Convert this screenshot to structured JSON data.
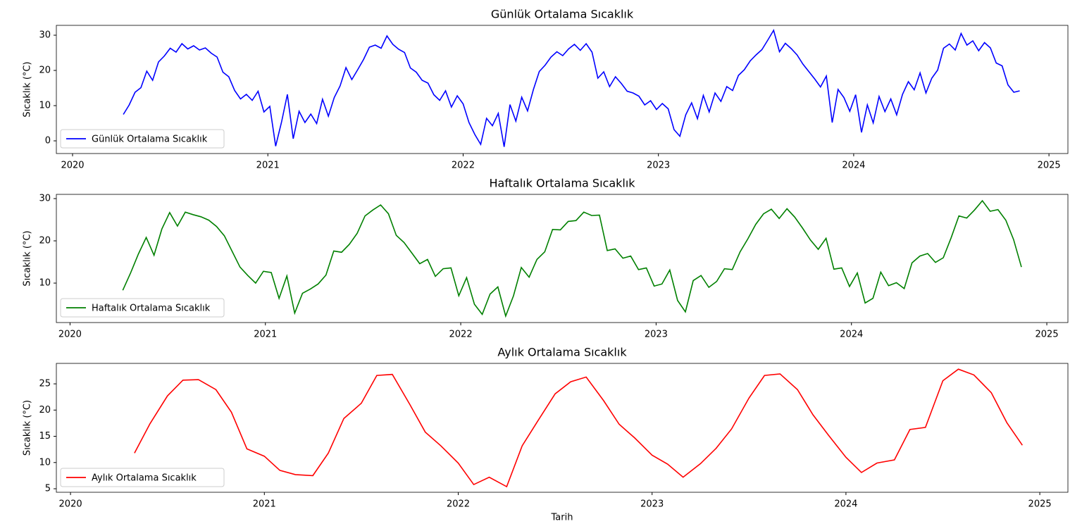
{
  "chart_data": [
    {
      "type": "line",
      "title": "Günlük Ortalama Sıcaklık",
      "y_label": "Sıcaklık (°C)",
      "legend": "lower left",
      "xlim": [
        2019.917,
        2025.097
      ],
      "xticks": [
        2020,
        2021,
        2022,
        2023,
        2024,
        2025
      ],
      "ylim": [
        -3.6,
        32.8
      ],
      "yticks": [
        0,
        10,
        20,
        30
      ],
      "x": [
        2020.26,
        2020.29,
        2020.32,
        2020.35,
        2020.38,
        2020.41,
        2020.44,
        2020.47,
        2020.5,
        2020.53,
        2020.56,
        2020.59,
        2020.62,
        2020.65,
        2020.68,
        2020.71,
        2020.74,
        2020.77,
        2020.8,
        2020.83,
        2020.86,
        2020.89,
        2020.92,
        2020.95,
        2020.98,
        2021.01,
        2021.04,
        2021.07,
        2021.1,
        2021.13,
        2021.16,
        2021.19,
        2021.22,
        2021.25,
        2021.28,
        2021.31,
        2021.34,
        2021.37,
        2021.4,
        2021.43,
        2021.46,
        2021.49,
        2021.52,
        2021.55,
        2021.58,
        2021.61,
        2021.64,
        2021.67,
        2021.7,
        2021.73,
        2021.76,
        2021.79,
        2021.82,
        2021.85,
        2021.88,
        2021.91,
        2021.94,
        2021.97,
        2022.0,
        2022.03,
        2022.06,
        2022.09,
        2022.12,
        2022.15,
        2022.18,
        2022.21,
        2022.24,
        2022.27,
        2022.3,
        2022.33,
        2022.36,
        2022.39,
        2022.42,
        2022.45,
        2022.48,
        2022.51,
        2022.54,
        2022.57,
        2022.6,
        2022.63,
        2022.66,
        2022.69,
        2022.72,
        2022.75,
        2022.78,
        2022.81,
        2022.84,
        2022.87,
        2022.9,
        2022.93,
        2022.96,
        2022.99,
        2023.02,
        2023.05,
        2023.08,
        2023.11,
        2023.14,
        2023.17,
        2023.2,
        2023.23,
        2023.26,
        2023.29,
        2023.32,
        2023.35,
        2023.38,
        2023.41,
        2023.44,
        2023.47,
        2023.5,
        2023.53,
        2023.56,
        2023.59,
        2023.62,
        2023.65,
        2023.68,
        2023.71,
        2023.74,
        2023.77,
        2023.8,
        2023.83,
        2023.86,
        2023.89,
        2023.92,
        2023.95,
        2023.98,
        2024.01,
        2024.04,
        2024.07,
        2024.1,
        2024.13,
        2024.16,
        2024.19,
        2024.22,
        2024.25,
        2024.28,
        2024.31,
        2024.34,
        2024.37,
        2024.4,
        2024.43,
        2024.46,
        2024.49,
        2024.52,
        2024.55,
        2024.58,
        2024.61,
        2024.64,
        2024.67,
        2024.7,
        2024.73,
        2024.76,
        2024.79,
        2024.82,
        2024.85
      ],
      "series": [
        {
          "name": "Günlük Ortalama Sıcaklık",
          "color": "#0000ff",
          "values": [
            7.5,
            10.2,
            13.8,
            15.1,
            19.8,
            17.2,
            22.4,
            24.1,
            26.3,
            25.2,
            27.6,
            26.1,
            27.0,
            25.8,
            26.4,
            24.9,
            23.8,
            19.5,
            18.2,
            14.3,
            11.9,
            13.2,
            11.5,
            14.1,
            8.2,
            9.8,
            -1.5,
            5.3,
            13.2,
            0.6,
            8.4,
            5.2,
            7.6,
            4.9,
            11.8,
            7.0,
            12.3,
            15.6,
            20.8,
            17.4,
            20.2,
            23.1,
            26.6,
            27.2,
            26.3,
            29.8,
            27.4,
            26.0,
            25.1,
            20.7,
            19.5,
            17.2,
            16.4,
            13.1,
            11.5,
            14.2,
            9.6,
            12.8,
            10.5,
            5.2,
            1.8,
            -1.0,
            6.4,
            4.3,
            7.8,
            -1.7,
            10.3,
            5.6,
            12.4,
            8.5,
            14.6,
            19.7,
            21.5,
            23.8,
            25.3,
            24.2,
            26.1,
            27.4,
            25.7,
            27.6,
            25.2,
            17.8,
            19.6,
            15.4,
            18.2,
            16.3,
            14.1,
            13.6,
            12.7,
            10.2,
            11.4,
            8.9,
            10.6,
            9.1,
            3.2,
            1.3,
            7.4,
            10.8,
            6.3,
            12.9,
            8.2,
            13.6,
            11.2,
            15.4,
            14.3,
            18.6,
            20.2,
            22.7,
            24.4,
            25.9,
            28.6,
            31.4,
            25.3,
            27.7,
            26.2,
            24.4,
            21.8,
            19.7,
            17.6,
            15.3,
            18.4,
            5.2,
            14.6,
            12.3,
            8.4,
            13.1,
            2.4,
            10.2,
            5.1,
            12.6,
            8.3,
            11.9,
            7.4,
            13.2,
            16.8,
            14.5,
            19.3,
            13.6,
            17.8,
            20.1,
            26.3,
            27.5,
            25.8,
            30.5,
            27.2,
            28.4,
            25.6,
            27.9,
            26.4,
            22.1,
            21.3,
            15.9,
            13.8,
            14.2
          ]
        }
      ]
    },
    {
      "type": "line",
      "title": "Haftalık Ortalama Sıcaklık",
      "y_label": "Sıcaklık (°C)",
      "legend": "lower left",
      "xlim": [
        2019.93,
        2025.108
      ],
      "xticks": [
        2020,
        2021,
        2022,
        2023,
        2024,
        2025
      ],
      "ylim": [
        0.67,
        31.0
      ],
      "yticks": [
        10,
        20,
        30
      ],
      "x": [
        2020.27,
        2020.31,
        2020.35,
        2020.39,
        2020.43,
        2020.47,
        2020.51,
        2020.55,
        2020.59,
        2020.63,
        2020.67,
        2020.71,
        2020.75,
        2020.79,
        2020.83,
        2020.87,
        2020.91,
        2020.95,
        2020.99,
        2021.03,
        2021.07,
        2021.11,
        2021.15,
        2021.19,
        2021.23,
        2021.27,
        2021.31,
        2021.35,
        2021.39,
        2021.43,
        2021.47,
        2021.51,
        2021.55,
        2021.59,
        2021.63,
        2021.67,
        2021.71,
        2021.75,
        2021.79,
        2021.83,
        2021.87,
        2021.91,
        2021.95,
        2021.99,
        2022.03,
        2022.07,
        2022.11,
        2022.15,
        2022.19,
        2022.23,
        2022.27,
        2022.31,
        2022.35,
        2022.39,
        2022.43,
        2022.47,
        2022.51,
        2022.55,
        2022.59,
        2022.63,
        2022.67,
        2022.71,
        2022.75,
        2022.79,
        2022.83,
        2022.87,
        2022.91,
        2022.95,
        2022.99,
        2023.03,
        2023.07,
        2023.11,
        2023.15,
        2023.19,
        2023.23,
        2023.27,
        2023.31,
        2023.35,
        2023.39,
        2023.43,
        2023.47,
        2023.51,
        2023.55,
        2023.59,
        2023.63,
        2023.67,
        2023.71,
        2023.75,
        2023.79,
        2023.83,
        2023.87,
        2023.91,
        2023.95,
        2023.99,
        2024.03,
        2024.07,
        2024.11,
        2024.15,
        2024.19,
        2024.23,
        2024.27,
        2024.31,
        2024.35,
        2024.39,
        2024.43,
        2024.47,
        2024.51,
        2024.55,
        2024.59,
        2024.63,
        2024.67,
        2024.71,
        2024.75,
        2024.79,
        2024.83,
        2024.87
      ],
      "series": [
        {
          "name": "Haftalık Ortalama Sıcaklık",
          "color": "#008000",
          "values": [
            8.3,
            12.4,
            16.9,
            20.8,
            16.6,
            22.8,
            26.7,
            23.5,
            26.8,
            26.2,
            25.7,
            24.9,
            23.4,
            21.2,
            17.5,
            13.8,
            11.8,
            10.0,
            12.8,
            12.5,
            6.4,
            11.7,
            2.9,
            7.6,
            8.6,
            9.8,
            11.9,
            17.6,
            17.3,
            19.2,
            21.8,
            25.9,
            27.3,
            28.5,
            26.4,
            21.3,
            19.6,
            17.1,
            14.6,
            15.6,
            11.6,
            13.4,
            13.6,
            7.0,
            11.3,
            5.0,
            2.6,
            7.4,
            9.1,
            2.2,
            7.0,
            13.7,
            11.4,
            15.6,
            17.4,
            22.7,
            22.6,
            24.6,
            24.8,
            26.8,
            26.0,
            26.1,
            17.7,
            18.1,
            15.9,
            16.4,
            13.2,
            13.6,
            9.3,
            9.8,
            13.1,
            5.9,
            3.2,
            10.6,
            11.8,
            9.0,
            10.4,
            13.4,
            13.2,
            17.4,
            20.5,
            23.9,
            26.4,
            27.5,
            25.3,
            27.6,
            25.6,
            23.0,
            20.2,
            18.0,
            20.6,
            13.3,
            13.6,
            9.2,
            12.4,
            5.3,
            6.4,
            12.6,
            9.4,
            10.1,
            8.7,
            14.8,
            16.4,
            17.0,
            14.9,
            16.0,
            20.7,
            25.9,
            25.4,
            27.3,
            29.5,
            27.0,
            27.4,
            24.9,
            20.3,
            13.8
          ]
        }
      ]
    },
    {
      "type": "line",
      "title": "Aylık Ortalama Sıcaklık",
      "y_label": "Sıcaklık (°C)",
      "x_label": "Tarih",
      "legend": "lower left",
      "xlim": [
        2019.927,
        2025.145
      ],
      "xticks": [
        2020,
        2021,
        2022,
        2023,
        2024,
        2025
      ],
      "ylim": [
        4.33,
        28.9
      ],
      "yticks": [
        5,
        10,
        15,
        20,
        25
      ],
      "x": [
        2020.33,
        2020.41,
        2020.5,
        2020.58,
        2020.66,
        2020.75,
        2020.83,
        2020.91,
        2021.0,
        2021.08,
        2021.16,
        2021.25,
        2021.33,
        2021.41,
        2021.5,
        2021.58,
        2021.66,
        2021.75,
        2021.83,
        2021.91,
        2022.0,
        2022.08,
        2022.16,
        2022.25,
        2022.33,
        2022.41,
        2022.5,
        2022.58,
        2022.66,
        2022.75,
        2022.83,
        2022.91,
        2023.0,
        2023.08,
        2023.16,
        2023.25,
        2023.33,
        2023.41,
        2023.5,
        2023.58,
        2023.66,
        2023.75,
        2023.83,
        2023.91,
        2024.0,
        2024.08,
        2024.16,
        2024.25,
        2024.33,
        2024.41,
        2024.5,
        2024.58,
        2024.66,
        2024.75,
        2024.83,
        2024.91
      ],
      "series": [
        {
          "name": "Aylık Ortalama Sıcaklık",
          "color": "#ff0000",
          "values": [
            11.8,
            17.4,
            22.7,
            25.7,
            25.8,
            23.9,
            19.6,
            12.6,
            11.2,
            8.5,
            7.7,
            7.5,
            11.8,
            18.4,
            21.3,
            26.6,
            26.8,
            21.1,
            15.8,
            13.2,
            9.9,
            5.8,
            7.2,
            5.4,
            13.2,
            17.9,
            23.1,
            25.4,
            26.3,
            21.8,
            17.3,
            14.7,
            11.4,
            9.7,
            7.2,
            9.8,
            12.7,
            16.4,
            22.3,
            26.6,
            26.9,
            23.9,
            19.1,
            15.2,
            11.0,
            8.1,
            9.9,
            10.5,
            16.3,
            16.7,
            25.6,
            27.8,
            26.7,
            23.3,
            17.6,
            13.3
          ]
        }
      ]
    }
  ]
}
